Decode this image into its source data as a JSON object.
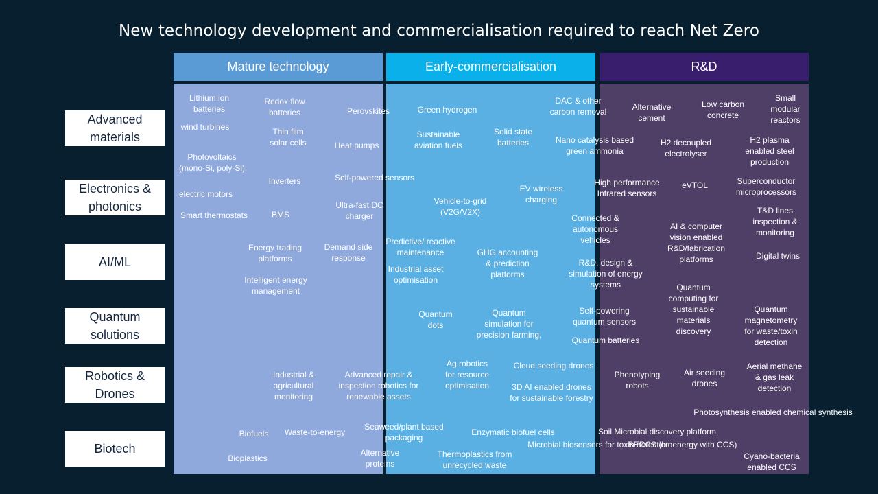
{
  "title": "New technology development and commercialisation required to reach Net Zero",
  "columns": [
    {
      "label": "Mature technology",
      "header_color": "#5b9bd5",
      "body_color": "#8fa9dc"
    },
    {
      "label": "Early-commercialisation",
      "header_color": "#0ab0ea",
      "body_color": "#5ab0e2"
    },
    {
      "label": "R&D",
      "header_color": "#3a1e6e",
      "body_color": "#4f3f66"
    }
  ],
  "rows": [
    {
      "label": "Advanced materials"
    },
    {
      "label": "Electronics & photonics"
    },
    {
      "label": "AI/ML"
    },
    {
      "label": "Quantum solutions"
    },
    {
      "label": "Robotics & Drones"
    },
    {
      "label": "Biotech"
    }
  ],
  "mature_items": [
    {
      "text": "Lithium ion batteries"
    },
    {
      "text": "Redox flow batteries"
    },
    {
      "text": "Perovskites"
    },
    {
      "text": "wind turbines"
    },
    {
      "text": "Thin film solar cells"
    },
    {
      "text": "Heat pumps"
    },
    {
      "text": "Photovoltaics (mono-Si, poly-Si)"
    },
    {
      "text": "Inverters"
    },
    {
      "text": "Self-powered sensors"
    },
    {
      "text": "electric motors"
    },
    {
      "text": "Smart thermostats"
    },
    {
      "text": "BMS"
    },
    {
      "text": "Ultra-fast DC charger"
    },
    {
      "text": "Energy trading platforms"
    },
    {
      "text": "Demand side response"
    },
    {
      "text": "Intelligent energy management"
    },
    {
      "text": "Industrial & agricultural monitoring"
    },
    {
      "text": "Advanced repair & inspection robotics for renewable assets"
    },
    {
      "text": "Biofuels"
    },
    {
      "text": "Waste-to-energy"
    },
    {
      "text": "Bioplastics"
    },
    {
      "text": "Alternative proteins"
    }
  ],
  "early_items": [
    {
      "text": "Green hydrogen"
    },
    {
      "text": "DAC & other carbon removal"
    },
    {
      "text": "Sustainable aviation fuels"
    },
    {
      "text": "Solid state batteries"
    },
    {
      "text": "Nano catalysis based green ammonia"
    },
    {
      "text": "Vehicle-to-grid (V2G/V2X)"
    },
    {
      "text": "EV wireless charging"
    },
    {
      "text": "Predictive/ reactive maintenance"
    },
    {
      "text": "Industrial asset optimisation"
    },
    {
      "text": "GHG accounting & prediction platforms"
    },
    {
      "text": "R&D, design & simulation of energy systems"
    },
    {
      "text": "Quantum dots"
    },
    {
      "text": "Quantum simulation for precision farming,"
    },
    {
      "text": "Self-powering quantum sensors"
    },
    {
      "text": "Quantum batteries"
    },
    {
      "text": "Ag robotics for resource optimisation"
    },
    {
      "text": "Cloud seeding drones"
    },
    {
      "text": "3D AI enabled drones for sustainable forestry"
    },
    {
      "text": "Seaweed/plant based packaging"
    },
    {
      "text": "Enzymatic biofuel cells"
    },
    {
      "text": "Thermoplastics from unrecycled waste"
    }
  ],
  "rd_items": [
    {
      "text": "Alternative cement"
    },
    {
      "text": "Low carbon concrete"
    },
    {
      "text": "Small modular reactors"
    },
    {
      "text": "H2 decoupled electrolyser"
    },
    {
      "text": "H2 plasma enabled steel production"
    },
    {
      "text": "High performance Infrared sensors"
    },
    {
      "text": "eVTOL"
    },
    {
      "text": "Superconductor microprocessors"
    },
    {
      "text": "Connected & autonomous vehicles"
    },
    {
      "text": "AI & computer vision enabled R&D/fabrication platforms"
    },
    {
      "text": "T&D lines inspection & monitoring"
    },
    {
      "text": "Digital twins"
    },
    {
      "text": "Quantum computing for sustainable materials discovery"
    },
    {
      "text": "Quantum magnetometry for waste/toxin detection"
    },
    {
      "text": "Phenotyping robots"
    },
    {
      "text": "Air seeding drones"
    },
    {
      "text": "Aerial methane & gas leak detection"
    },
    {
      "text": "Soil Microbial discovery platform"
    },
    {
      "text": "Microbial biosensors for toxin detection"
    },
    {
      "text": "BECCS (bioenergy with CCS)"
    },
    {
      "text": "Photosynthesis enabled chemical synthesis"
    },
    {
      "text": "Cyano-bacteria enabled CCS"
    }
  ]
}
